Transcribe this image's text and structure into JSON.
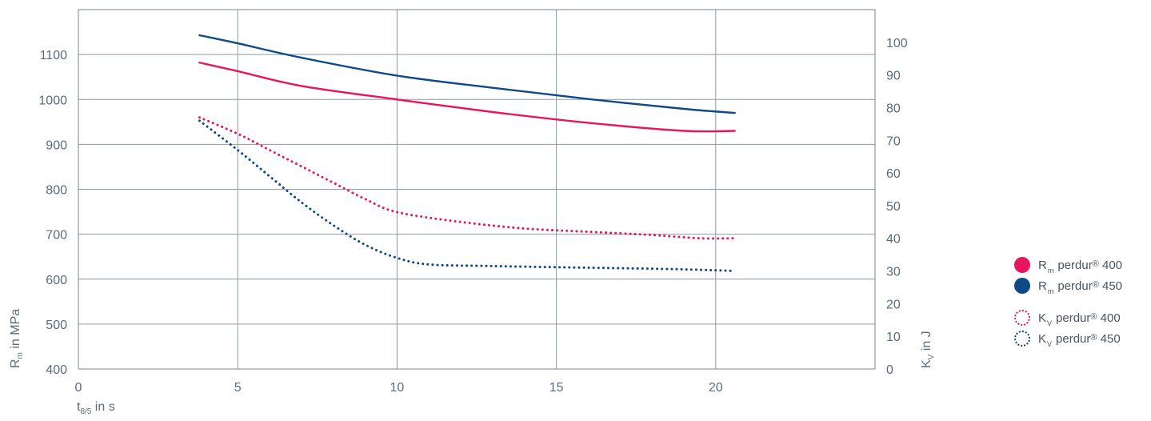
{
  "chart_data": {
    "type": "line",
    "title": "",
    "x": {
      "label_main": "t",
      "label_sub": "8/5",
      "label_rest": " in s",
      "range": [
        0,
        25
      ],
      "ticks": [
        0,
        5,
        10,
        15,
        20
      ]
    },
    "y_left": {
      "label_main": "R",
      "label_sub": "m",
      "label_rest": " in MPa",
      "range": [
        400,
        1200
      ],
      "ticks": [
        400,
        500,
        600,
        700,
        800,
        900,
        1000,
        1100
      ]
    },
    "y_right": {
      "label_main": "K",
      "label_sub": "V",
      "label_rest": " in J",
      "range": [
        0,
        110
      ],
      "ticks": [
        0,
        10,
        20,
        30,
        40,
        50,
        60,
        70,
        80,
        90,
        100
      ]
    },
    "grid": true,
    "legend_position": "right",
    "series": [
      {
        "name": "R_m perdur® 400",
        "axis": "left",
        "style": "solid",
        "color": "#e8175d",
        "x": [
          3.8,
          5,
          7,
          10,
          13,
          16,
          19,
          20.6
        ],
        "y": [
          1082,
          1063,
          1030,
          1000,
          972,
          948,
          930,
          930
        ]
      },
      {
        "name": "R_m perdur® 450",
        "axis": "left",
        "style": "solid",
        "color": "#0d4a86",
        "x": [
          3.8,
          5,
          7,
          10,
          13,
          16,
          19,
          20.6
        ],
        "y": [
          1143,
          1125,
          1093,
          1053,
          1026,
          1001,
          979,
          970
        ]
      },
      {
        "name": "K_V perdur® 400",
        "axis": "right",
        "style": "dotted",
        "color": "#e8175d",
        "x": [
          3.8,
          5,
          6,
          7,
          8,
          9,
          10,
          12,
          14,
          16,
          18,
          19.5,
          20.6
        ],
        "y": [
          77,
          72,
          67,
          62,
          57,
          52,
          48,
          45,
          43,
          42,
          41,
          40,
          40
        ]
      },
      {
        "name": "K_V perdur® 450",
        "axis": "right",
        "style": "dotted",
        "color": "#0d4a86",
        "x": [
          3.8,
          5,
          6,
          7,
          8,
          9,
          10,
          11,
          13,
          16,
          19,
          20.6
        ],
        "y": [
          76,
          67,
          59,
          51,
          44,
          38,
          34,
          32,
          31.5,
          31,
          30.5,
          30
        ]
      }
    ]
  },
  "legend": {
    "items": [
      {
        "main": "R",
        "sub": "m",
        "text": "perdur",
        "reg": "®",
        "num": "400",
        "swatch": "solid-pink"
      },
      {
        "main": "R",
        "sub": "m",
        "text": "perdur",
        "reg": "®",
        "num": "450",
        "swatch": "solid-blue"
      },
      {
        "main": "K",
        "sub": "V",
        "text": "perdur",
        "reg": "®",
        "num": "400",
        "swatch": "dot-pink"
      },
      {
        "main": "K",
        "sub": "V",
        "text": "perdur",
        "reg": "®",
        "num": "450",
        "swatch": "dot-blue"
      }
    ]
  }
}
